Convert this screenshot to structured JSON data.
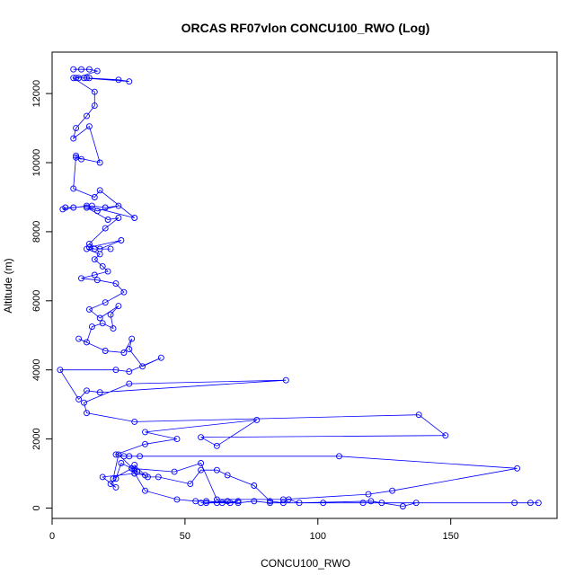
{
  "chart_data": {
    "type": "line",
    "title": "ORCAS RF07vlon CONCU100_RWO (Log)",
    "xlabel": "CONCU100_RWO",
    "ylabel": "Altitude (m)",
    "xlim": [
      0,
      190
    ],
    "ylim": [
      -300,
      13200
    ],
    "xticks": [
      0,
      50,
      100,
      150
    ],
    "yticks": [
      0,
      2000,
      4000,
      6000,
      8000,
      10000,
      12000
    ],
    "grid": false,
    "legend": "none",
    "marker": "open-circle",
    "series": [
      {
        "name": "",
        "color": "#0000ff",
        "points": [
          [
            8,
            12700
          ],
          [
            11,
            12700
          ],
          [
            14,
            12700
          ],
          [
            17,
            12650
          ],
          [
            9,
            12450
          ],
          [
            13,
            12450
          ],
          [
            25,
            12400
          ],
          [
            29,
            12350
          ],
          [
            12,
            12450
          ],
          [
            14,
            12450
          ],
          [
            10,
            12450
          ],
          [
            8,
            12450
          ],
          [
            16,
            12050
          ],
          [
            16,
            11650
          ],
          [
            13,
            11350
          ],
          [
            9,
            11000
          ],
          [
            8,
            10700
          ],
          [
            14,
            11050
          ],
          [
            18,
            10000
          ],
          [
            9,
            10150
          ],
          [
            11,
            10100
          ],
          [
            9,
            10200
          ],
          [
            8,
            9250
          ],
          [
            16,
            9000
          ],
          [
            18,
            9200
          ],
          [
            31,
            8400
          ],
          [
            13,
            8750
          ],
          [
            4,
            8650
          ],
          [
            5,
            8700
          ],
          [
            8,
            8700
          ],
          [
            15,
            8750
          ],
          [
            20,
            8700
          ],
          [
            25,
            8750
          ],
          [
            17,
            8600
          ],
          [
            13,
            8700
          ],
          [
            21,
            8350
          ],
          [
            25,
            8400
          ],
          [
            20,
            8100
          ],
          [
            14,
            7650
          ],
          [
            18,
            7500
          ],
          [
            26,
            7750
          ],
          [
            14,
            7550
          ],
          [
            16,
            7500
          ],
          [
            22,
            7500
          ],
          [
            13,
            7500
          ],
          [
            18,
            7350
          ],
          [
            16,
            7200
          ],
          [
            19,
            7000
          ],
          [
            21,
            6850
          ],
          [
            16,
            6750
          ],
          [
            11,
            6650
          ],
          [
            17,
            6600
          ],
          [
            24,
            6500
          ],
          [
            27,
            6250
          ],
          [
            20,
            5950
          ],
          [
            14,
            5750
          ],
          [
            18,
            5500
          ],
          [
            25,
            5850
          ],
          [
            22,
            5600
          ],
          [
            23,
            5200
          ],
          [
            19,
            5350
          ],
          [
            15,
            5250
          ],
          [
            13,
            4800
          ],
          [
            10,
            4900
          ],
          [
            20,
            4550
          ],
          [
            27,
            4500
          ],
          [
            30,
            4900
          ],
          [
            29,
            4600
          ],
          [
            34,
            4100
          ],
          [
            41,
            4350
          ],
          [
            29,
            3950
          ],
          [
            24,
            4000
          ],
          [
            3,
            4000
          ],
          [
            10,
            3150
          ],
          [
            13,
            3400
          ],
          [
            18,
            3350
          ],
          [
            88,
            3700
          ],
          [
            29,
            3600
          ],
          [
            12,
            3050
          ],
          [
            13,
            2750
          ],
          [
            31,
            2500
          ],
          [
            138,
            2700
          ],
          [
            148,
            2100
          ],
          [
            56,
            2050
          ],
          [
            62,
            1800
          ],
          [
            77,
            2550
          ],
          [
            35,
            2200
          ],
          [
            47,
            2000
          ],
          [
            35,
            1850
          ],
          [
            24,
            1550
          ],
          [
            27,
            1500
          ],
          [
            29,
            1500
          ],
          [
            33,
            1500
          ],
          [
            108,
            1500
          ],
          [
            175,
            1150
          ],
          [
            128,
            500
          ],
          [
            119,
            400
          ],
          [
            87,
            250
          ],
          [
            62,
            250
          ],
          [
            56,
            1300
          ],
          [
            46,
            1050
          ],
          [
            30,
            1150
          ],
          [
            23,
            850
          ],
          [
            25,
            1550
          ],
          [
            31,
            1100
          ],
          [
            36,
            900
          ],
          [
            40,
            900
          ],
          [
            52,
            700
          ],
          [
            56,
            1100
          ],
          [
            62,
            1100
          ],
          [
            66,
            950
          ],
          [
            76,
            650
          ],
          [
            82,
            200
          ],
          [
            87,
            150
          ],
          [
            89,
            250
          ],
          [
            93,
            150
          ],
          [
            120,
            200
          ],
          [
            124,
            150
          ],
          [
            132,
            50
          ],
          [
            137,
            150
          ],
          [
            174,
            150
          ],
          [
            180,
            150
          ],
          [
            183,
            150
          ],
          [
            117,
            150
          ],
          [
            102,
            150
          ],
          [
            82,
            150
          ],
          [
            76,
            200
          ],
          [
            70,
            150
          ],
          [
            62,
            150
          ],
          [
            56,
            150
          ],
          [
            58,
            150
          ],
          [
            66,
            200
          ],
          [
            64,
            150
          ],
          [
            70,
            200
          ],
          [
            67,
            150
          ],
          [
            58,
            200
          ],
          [
            54,
            200
          ],
          [
            47,
            250
          ],
          [
            35,
            500
          ],
          [
            30,
            1150
          ],
          [
            26,
            1300
          ],
          [
            24,
            850
          ],
          [
            22,
            700
          ],
          [
            24,
            600
          ],
          [
            19,
            900
          ],
          [
            31,
            1000
          ],
          [
            35,
            950
          ],
          [
            31,
            1250
          ],
          [
            32,
            1050
          ]
        ]
      }
    ]
  }
}
